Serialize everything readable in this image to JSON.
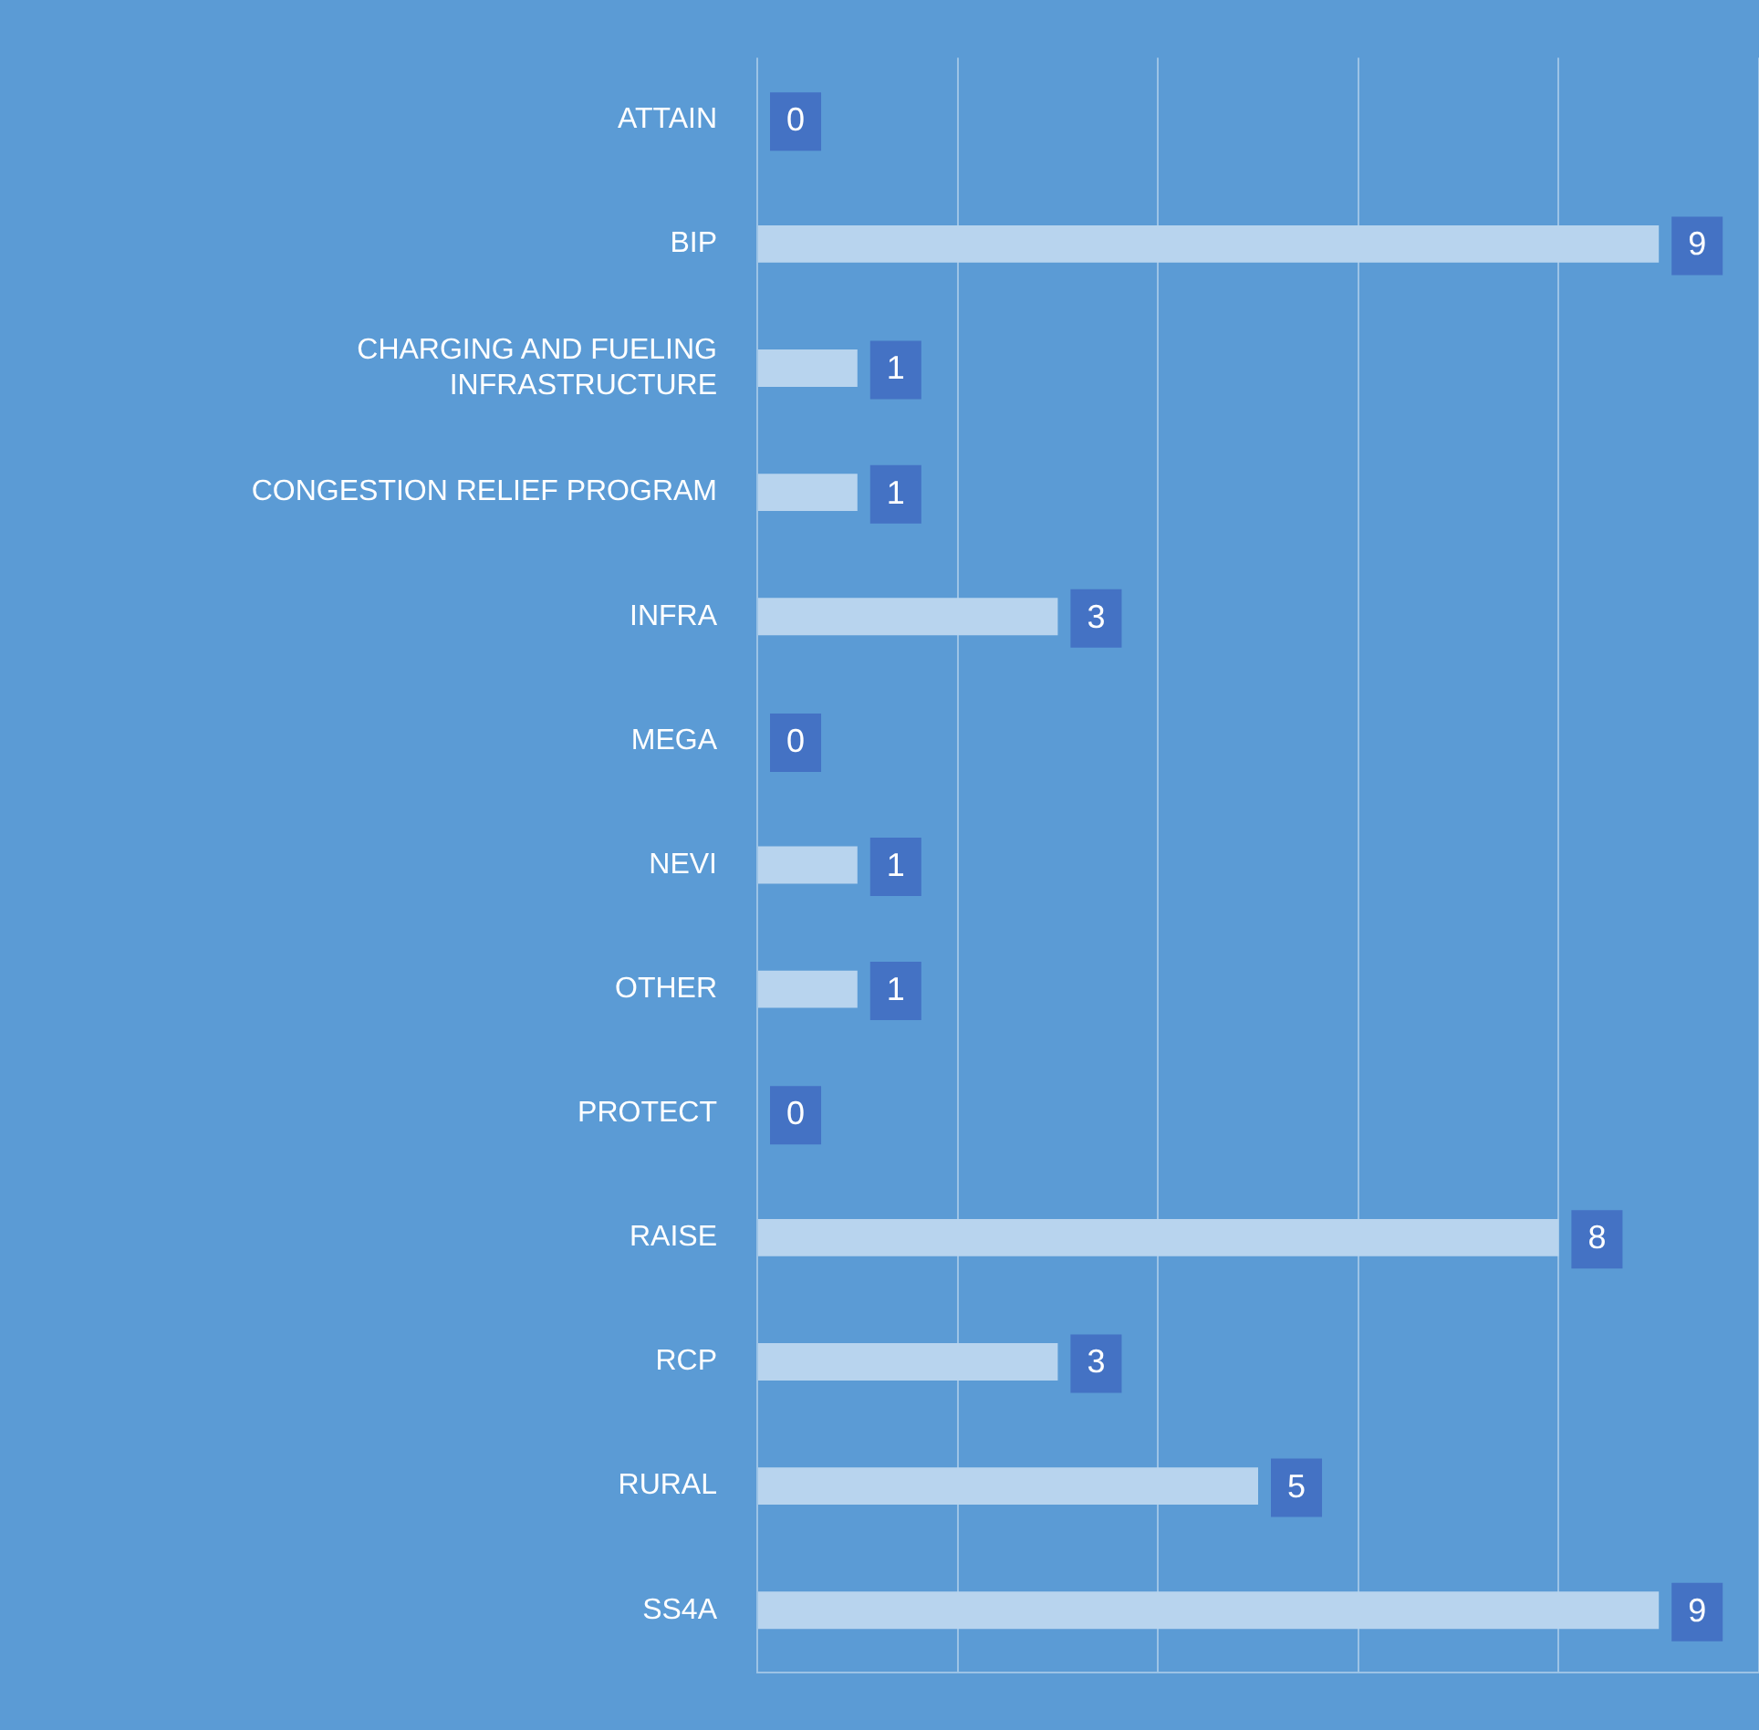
{
  "chart_data": {
    "type": "bar",
    "orientation": "horizontal",
    "categories": [
      "ATTAIN",
      "BIP",
      "CHARGING AND FUELING INFRASTRUCTURE",
      "CONGESTION RELIEF PROGRAM",
      "INFRA",
      "MEGA",
      "NEVI",
      "OTHER",
      "PROTECT",
      "RAISE",
      "RCP",
      "RURAL",
      "SS4A"
    ],
    "values": [
      0,
      9,
      1,
      1,
      3,
      0,
      1,
      1,
      0,
      8,
      3,
      5,
      9
    ],
    "color": "#b8d4ee",
    "tick_labels": "y",
    "grid": "x",
    "data_labels": true
  }
}
